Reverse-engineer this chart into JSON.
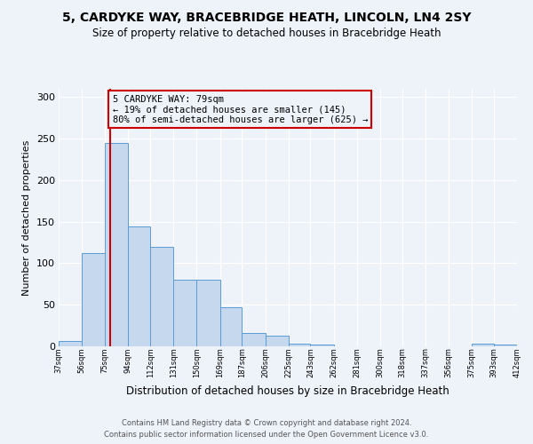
{
  "title": "5, CARDYKE WAY, BRACEBRIDGE HEATH, LINCOLN, LN4 2SY",
  "subtitle": "Size of property relative to detached houses in Bracebridge Heath",
  "xlabel": "Distribution of detached houses by size in Bracebridge Heath",
  "ylabel": "Number of detached properties",
  "bin_edges": [
    37,
    56,
    75,
    94,
    112,
    131,
    150,
    169,
    187,
    206,
    225,
    243,
    262,
    281,
    300,
    318,
    337,
    356,
    375,
    393,
    412
  ],
  "bar_heights": [
    6,
    112,
    245,
    144,
    120,
    80,
    80,
    47,
    16,
    13,
    3,
    2,
    0,
    0,
    0,
    0,
    0,
    0,
    3,
    2
  ],
  "bar_color": "#c5d8ee",
  "bar_edge_color": "#5a9bd5",
  "vline_x": 79,
  "vline_color": "#cc0000",
  "annotation_text": "5 CARDYKE WAY: 79sqm\n← 19% of detached houses are smaller (145)\n80% of semi-detached houses are larger (625) →",
  "annotation_box_edge_color": "#cc0000",
  "annotation_fontsize": 7.5,
  "ylim": [
    0,
    310
  ],
  "tick_labels": [
    "37sqm",
    "56sqm",
    "75sqm",
    "94sqm",
    "112sqm",
    "131sqm",
    "150sqm",
    "169sqm",
    "187sqm",
    "206sqm",
    "225sqm",
    "243sqm",
    "262sqm",
    "281sqm",
    "300sqm",
    "318sqm",
    "337sqm",
    "356sqm",
    "375sqm",
    "393sqm",
    "412sqm"
  ],
  "yticks": [
    0,
    50,
    100,
    150,
    200,
    250,
    300
  ],
  "footer_line1": "Contains HM Land Registry data © Crown copyright and database right 2024.",
  "footer_line2": "Contains public sector information licensed under the Open Government Licence v3.0.",
  "bg_color": "#eef2f9",
  "grid_color": "#ffffff",
  "title_fontsize": 10,
  "subtitle_fontsize": 8.5,
  "ylabel_fontsize": 8,
  "xlabel_fontsize": 8.5,
  "ytick_fontsize": 8,
  "xtick_fontsize": 6
}
